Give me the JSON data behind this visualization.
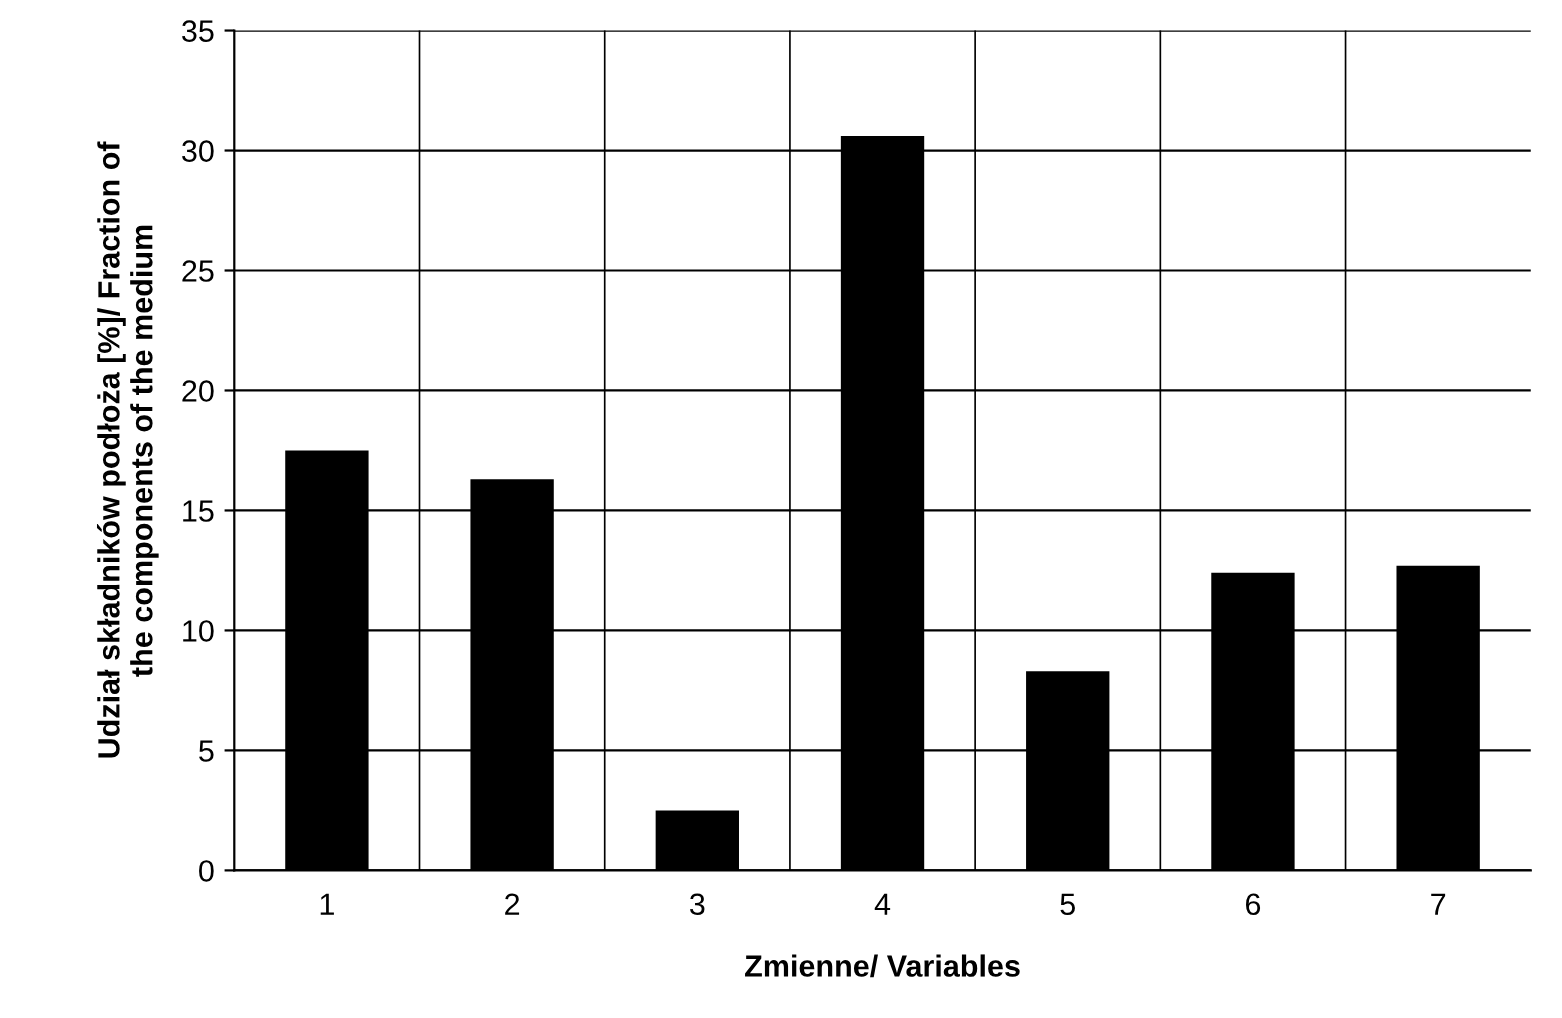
{
  "chart_data": {
    "type": "bar",
    "xlabel": "Zmienne/ Variables",
    "ylabel": "Udział składników podłoża [%]/ Fraction of\nthe components of the medium",
    "categories": [
      "1",
      "2",
      "3",
      "4",
      "5",
      "6",
      "7"
    ],
    "values": [
      17.5,
      16.3,
      2.5,
      30.6,
      8.3,
      12.4,
      12.7
    ],
    "color": "#000000",
    "ylim": [
      0,
      35
    ],
    "yticks": [
      0,
      5,
      10,
      15,
      20,
      25,
      30,
      35
    ],
    "grid": true
  }
}
